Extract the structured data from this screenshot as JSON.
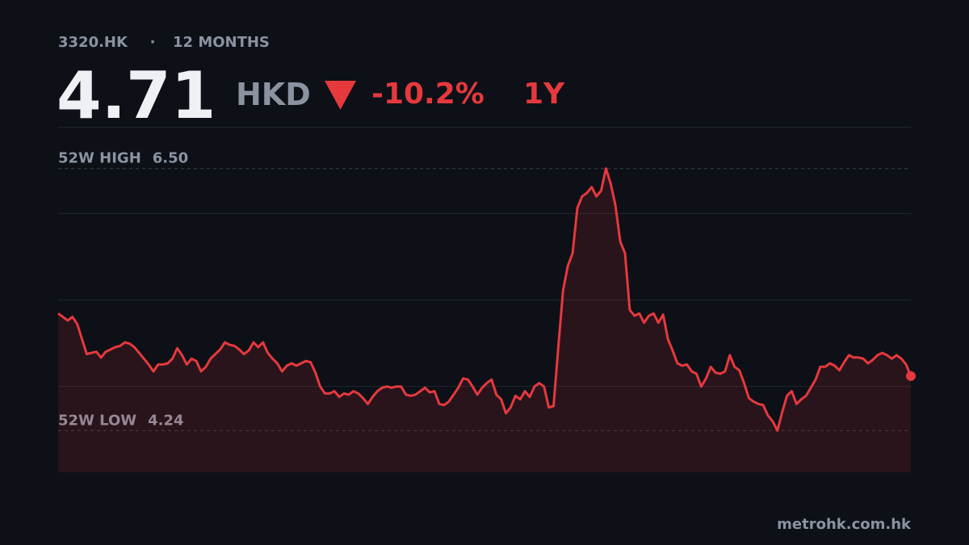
{
  "header": {
    "ticker": "3320.HK",
    "separator": "·",
    "period": "12 MONTHS",
    "price": 4.71,
    "currency": "HKD",
    "change": {
      "value": -10.2,
      "label": "-10.2%"
    },
    "range": "1Y"
  },
  "chart_data": {
    "type": "line",
    "color": "#e5393d",
    "ylim": [
      3.88,
      6.86
    ],
    "annotations": [
      {
        "text": "52W HIGH",
        "value": 6.5,
        "label": "6.50"
      },
      {
        "text": "52W LOW",
        "value": 4.24,
        "label": "4.24"
      }
    ],
    "values": [
      5.25,
      5.22,
      5.19,
      5.22,
      5.16,
      5.03,
      4.9,
      4.91,
      4.92,
      4.87,
      4.92,
      4.94,
      4.96,
      4.97,
      5.0,
      4.99,
      4.96,
      4.91,
      4.86,
      4.81,
      4.75,
      4.81,
      4.81,
      4.82,
      4.86,
      4.95,
      4.89,
      4.81,
      4.86,
      4.84,
      4.75,
      4.79,
      4.86,
      4.9,
      4.94,
      5.0,
      4.98,
      4.97,
      4.94,
      4.9,
      4.93,
      5.0,
      4.96,
      5.0,
      4.91,
      4.86,
      4.82,
      4.75,
      4.8,
      4.82,
      4.8,
      4.82,
      4.84,
      4.83,
      4.74,
      4.62,
      4.56,
      4.56,
      4.58,
      4.53,
      4.56,
      4.55,
      4.58,
      4.56,
      4.52,
      4.47,
      4.53,
      4.58,
      4.61,
      4.62,
      4.61,
      4.62,
      4.62,
      4.55,
      4.54,
      4.55,
      4.58,
      4.61,
      4.57,
      4.58,
      4.47,
      4.46,
      4.49,
      4.55,
      4.61,
      4.69,
      4.68,
      4.62,
      4.55,
      4.61,
      4.65,
      4.68,
      4.55,
      4.51,
      4.39,
      4.44,
      4.54,
      4.51,
      4.58,
      4.53,
      4.62,
      4.65,
      4.62,
      4.44,
      4.45,
      4.96,
      5.45,
      5.66,
      5.77,
      6.16,
      6.26,
      6.29,
      6.34,
      6.26,
      6.31,
      6.5,
      6.37,
      6.18,
      5.87,
      5.77,
      5.28,
      5.23,
      5.25,
      5.17,
      5.23,
      5.25,
      5.17,
      5.24,
      5.03,
      4.93,
      4.82,
      4.8,
      4.81,
      4.75,
      4.73,
      4.62,
      4.69,
      4.79,
      4.74,
      4.73,
      4.75,
      4.89,
      4.79,
      4.76,
      4.65,
      4.52,
      4.49,
      4.47,
      4.46,
      4.37,
      4.32,
      4.24,
      4.4,
      4.54,
      4.58,
      4.47,
      4.51,
      4.54,
      4.61,
      4.68,
      4.79,
      4.79,
      4.82,
      4.8,
      4.76,
      4.83,
      4.89,
      4.87,
      4.87,
      4.86,
      4.82,
      4.85,
      4.89,
      4.91,
      4.89,
      4.86,
      4.89,
      4.86,
      4.81,
      4.71
    ]
  },
  "footer": {
    "source": "metrohk.com.hk"
  }
}
